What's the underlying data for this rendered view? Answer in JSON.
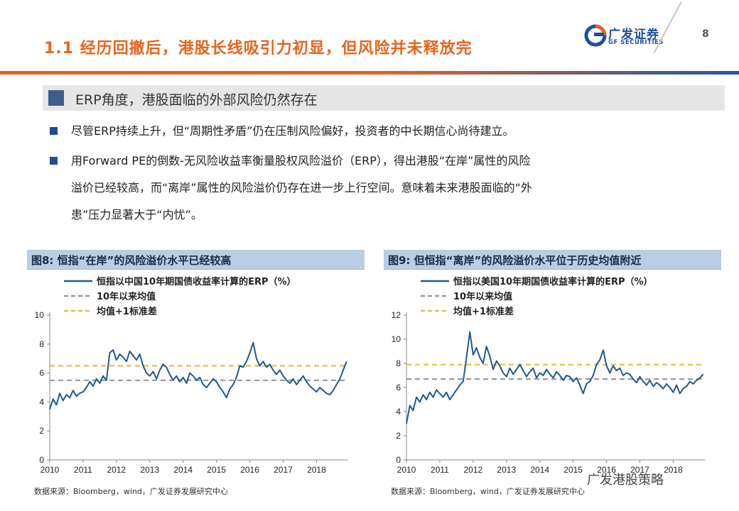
{
  "slide": {
    "title": "1.1 经历回撤后，港股长线吸引力初显，但风险并未释放完",
    "logo_cn": "广发证券",
    "logo_en": "GF SECURITIES",
    "page_number": "8",
    "colors": {
      "accent_orange": "#e8641b",
      "brand_blue": "#1d4fa0",
      "series_blue": "#1f5a8f",
      "mean_gray": "#9a9a9a",
      "band_gold": "#e0c046"
    }
  },
  "section": {
    "heading": "ERP角度，港股面临的外部风险仍然存在"
  },
  "bullets": [
    {
      "text": "尽管ERP持续上升，但“周期性矛盾”仍在压制风险偏好，投资者的中长期信心尚待建立。"
    },
    {
      "line1": "用Forward PE的倒数-无风险收益率衡量股权风险溢价（ERP），得出港股“在岸”属性的风险",
      "line2": "溢价已经较高，而“离岸”属性的风险溢价仍存在进一步上行空间。意味着未来港股面临的“外",
      "line3": "患”压力显著大于“内忧”。"
    }
  ],
  "figures": [
    {
      "caption": "图8:  恒指“在岸”的风险溢价水平已经较高",
      "source": "数据来源：Bloomberg，wind，广发证券发展研究中心"
    },
    {
      "caption": "图9:  但恒指“离岸”的风险溢价水平位于历史均值附近",
      "source": "数据来源：Bloomberg，wind，广发证券发展研究中心"
    }
  ],
  "watermark": "广发港股策略",
  "chart_data": [
    {
      "type": "line",
      "title": "图8:  恒指“在岸”的风险溢价水平已经较高",
      "xlabel": "",
      "ylabel": "",
      "xlim": [
        2010,
        2018.95
      ],
      "ylim": [
        0,
        10
      ],
      "yticks": [
        0,
        2,
        4,
        6,
        8,
        10
      ],
      "xticks": [
        "2010",
        "2011",
        "2012",
        "2013",
        "2014",
        "2015",
        "2016",
        "2017",
        "2018"
      ],
      "grid": false,
      "legend_position": "top-left",
      "series": [
        {
          "name": "恒指以中国10年期国债收益率计算的ERP（%）",
          "style": "solid",
          "color": "#1f5a8f",
          "x": [
            2010.0,
            2010.1,
            2010.2,
            2010.3,
            2010.4,
            2010.5,
            2010.6,
            2010.7,
            2010.8,
            2010.9,
            2011.0,
            2011.1,
            2011.2,
            2011.3,
            2011.4,
            2011.5,
            2011.6,
            2011.7,
            2011.8,
            2011.9,
            2012.0,
            2012.1,
            2012.2,
            2012.3,
            2012.4,
            2012.5,
            2012.6,
            2012.7,
            2012.8,
            2012.9,
            2013.0,
            2013.1,
            2013.2,
            2013.3,
            2013.4,
            2013.5,
            2013.6,
            2013.7,
            2013.8,
            2013.9,
            2014.0,
            2014.1,
            2014.2,
            2014.3,
            2014.4,
            2014.5,
            2014.6,
            2014.7,
            2014.8,
            2014.9,
            2015.0,
            2015.1,
            2015.2,
            2015.3,
            2015.4,
            2015.5,
            2015.6,
            2015.7,
            2015.8,
            2015.9,
            2016.0,
            2016.1,
            2016.2,
            2016.3,
            2016.4,
            2016.5,
            2016.6,
            2016.7,
            2016.8,
            2016.9,
            2017.0,
            2017.1,
            2017.2,
            2017.3,
            2017.4,
            2017.5,
            2017.6,
            2017.7,
            2017.8,
            2017.9,
            2018.0,
            2018.1,
            2018.2,
            2018.3,
            2018.4,
            2018.5,
            2018.6,
            2018.7,
            2018.8,
            2018.9
          ],
          "y": [
            3.5,
            4.2,
            3.8,
            4.6,
            4.1,
            4.5,
            4.3,
            4.8,
            4.4,
            4.6,
            4.7,
            5.0,
            5.4,
            5.1,
            5.6,
            5.3,
            5.8,
            5.5,
            7.4,
            7.6,
            6.9,
            7.3,
            7.1,
            6.8,
            7.5,
            7.2,
            6.9,
            7.3,
            6.5,
            6.0,
            5.8,
            6.1,
            5.6,
            6.2,
            6.6,
            6.4,
            5.9,
            5.5,
            5.8,
            5.4,
            5.7,
            5.3,
            6.0,
            5.8,
            5.5,
            5.7,
            5.2,
            5.0,
            5.3,
            5.6,
            5.4,
            5.0,
            4.7,
            4.3,
            4.9,
            5.2,
            5.7,
            6.5,
            6.4,
            6.8,
            7.4,
            8.1,
            7.0,
            6.5,
            6.8,
            6.4,
            6.6,
            6.2,
            5.9,
            6.2,
            5.8,
            5.5,
            5.3,
            5.6,
            5.2,
            5.5,
            5.8,
            5.4,
            5.1,
            4.9,
            4.7,
            5.0,
            4.8,
            4.6,
            4.5,
            4.8,
            5.2,
            5.6,
            6.2,
            6.8
          ]
        },
        {
          "name": "10年以来均值",
          "style": "dashed",
          "color": "#9a9a9a",
          "x": [
            2010,
            2018.95
          ],
          "y": [
            5.5,
            5.5
          ]
        },
        {
          "name": "均值+1标准差",
          "style": "dashed",
          "color": "#e0c046",
          "x": [
            2010,
            2018.95
          ],
          "y": [
            6.5,
            6.5
          ]
        }
      ]
    },
    {
      "type": "line",
      "title": "图9:  但恒指“离岸”的风险溢价水平位于历史均值附近",
      "xlabel": "",
      "ylabel": "",
      "xlim": [
        2010,
        2018.95
      ],
      "ylim": [
        0,
        12
      ],
      "yticks": [
        0,
        2,
        4,
        6,
        8,
        10,
        12
      ],
      "xticks": [
        "2010",
        "2011",
        "2012",
        "2013",
        "2014",
        "2015",
        "2016",
        "2017",
        "2018"
      ],
      "grid": false,
      "legend_position": "top-left",
      "series": [
        {
          "name": "恒指以美国10年期国债收益率计算的ERP（%）",
          "style": "solid",
          "color": "#1f5a8f",
          "x": [
            2010.0,
            2010.1,
            2010.2,
            2010.3,
            2010.4,
            2010.5,
            2010.6,
            2010.7,
            2010.8,
            2010.9,
            2011.0,
            2011.1,
            2011.2,
            2011.3,
            2011.4,
            2011.5,
            2011.6,
            2011.7,
            2011.8,
            2011.9,
            2012.0,
            2012.1,
            2012.2,
            2012.3,
            2012.4,
            2012.5,
            2012.6,
            2012.7,
            2012.8,
            2012.9,
            2013.0,
            2013.1,
            2013.2,
            2013.3,
            2013.4,
            2013.5,
            2013.6,
            2013.7,
            2013.8,
            2013.9,
            2014.0,
            2014.1,
            2014.2,
            2014.3,
            2014.4,
            2014.5,
            2014.6,
            2014.7,
            2014.8,
            2014.9,
            2015.0,
            2015.1,
            2015.2,
            2015.3,
            2015.4,
            2015.5,
            2015.6,
            2015.7,
            2015.8,
            2015.9,
            2016.0,
            2016.1,
            2016.2,
            2016.3,
            2016.4,
            2016.5,
            2016.6,
            2016.7,
            2016.8,
            2016.9,
            2017.0,
            2017.1,
            2017.2,
            2017.3,
            2017.4,
            2017.5,
            2017.6,
            2017.7,
            2017.8,
            2017.9,
            2018.0,
            2018.1,
            2018.2,
            2018.3,
            2018.4,
            2018.5,
            2018.6,
            2018.7,
            2018.8,
            2018.9
          ],
          "y": [
            3.0,
            4.5,
            4.1,
            5.2,
            4.8,
            5.4,
            5.0,
            5.6,
            5.2,
            5.8,
            5.5,
            5.2,
            5.6,
            5.0,
            5.4,
            5.8,
            6.2,
            6.5,
            8.5,
            10.6,
            8.7,
            9.3,
            8.5,
            8.0,
            9.4,
            8.6,
            7.5,
            8.2,
            7.8,
            7.2,
            6.9,
            7.6,
            7.1,
            7.5,
            7.9,
            7.4,
            6.9,
            7.3,
            7.6,
            6.8,
            7.2,
            7.0,
            7.5,
            7.1,
            6.8,
            7.3,
            7.0,
            6.6,
            7.0,
            6.9,
            6.5,
            6.8,
            6.2,
            5.5,
            6.3,
            6.5,
            7.0,
            7.9,
            8.3,
            9.1,
            7.8,
            7.2,
            7.8,
            7.4,
            7.6,
            7.0,
            7.2,
            7.1,
            6.7,
            6.4,
            6.9,
            6.5,
            6.2,
            6.6,
            6.1,
            6.4,
            6.2,
            5.9,
            6.3,
            6.0,
            5.6,
            6.2,
            5.5,
            5.9,
            6.1,
            6.5,
            6.3,
            6.6,
            6.8,
            7.1
          ]
        },
        {
          "name": "10年以来均值",
          "style": "dashed",
          "color": "#9a9a9a",
          "x": [
            2010,
            2018.95
          ],
          "y": [
            6.7,
            6.7
          ]
        },
        {
          "name": "均值+1标准差",
          "style": "dashed",
          "color": "#e0c046",
          "x": [
            2010,
            2018.95
          ],
          "y": [
            7.9,
            7.9
          ]
        }
      ]
    }
  ]
}
